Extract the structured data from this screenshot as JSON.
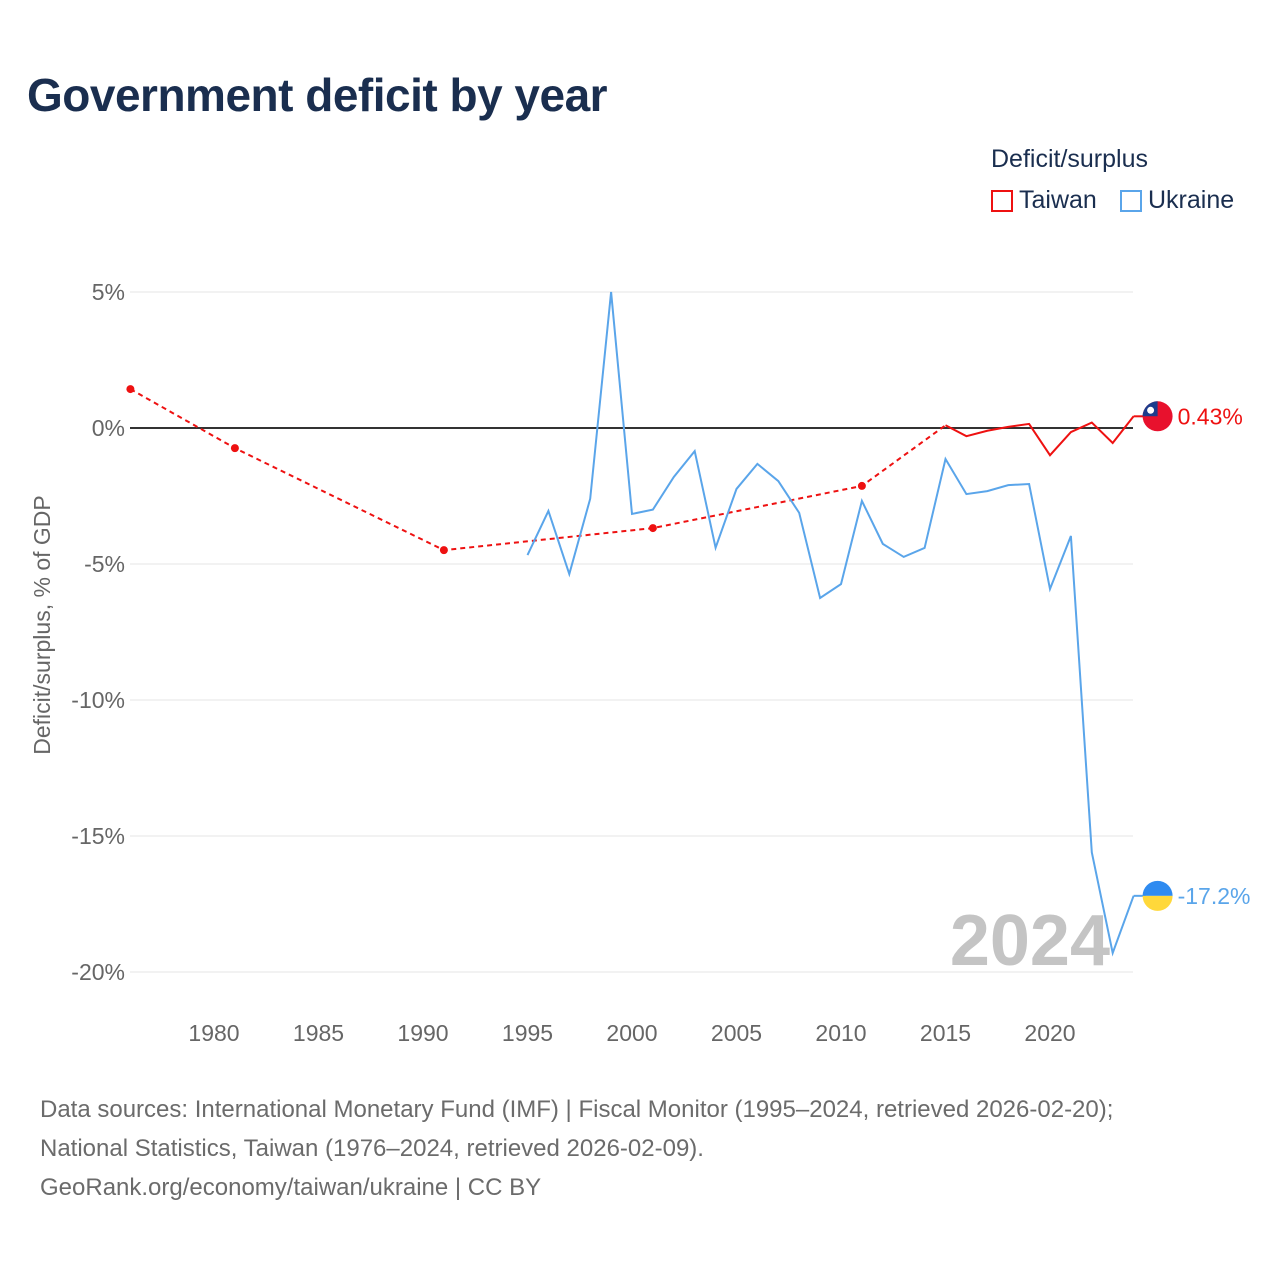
{
  "title": "Government deficit by year",
  "legend": {
    "title": "Deficit/surplus",
    "items": [
      {
        "label": "Taiwan",
        "color": "#ee1111"
      },
      {
        "label": "Ukraine",
        "color": "#5aa5ea"
      }
    ]
  },
  "chart_data": {
    "type": "line",
    "ylabel": "Deficit/surplus, % of GDP",
    "xlabel": "",
    "xlim": [
      1976,
      2024
    ],
    "ylim": [
      -20,
      5
    ],
    "x_ticks": [
      1980,
      1985,
      1990,
      1995,
      2000,
      2005,
      2010,
      2015,
      2020
    ],
    "y_ticks": [
      {
        "v": 5,
        "label": "5%"
      },
      {
        "v": 0,
        "label": "0%"
      },
      {
        "v": -5,
        "label": "-5%"
      },
      {
        "v": -10,
        "label": "-10%"
      },
      {
        "v": -15,
        "label": "-15%"
      },
      {
        "v": -20,
        "label": "-20%"
      }
    ],
    "year_watermark": "2024",
    "series": [
      {
        "name": "Taiwan",
        "color": "#ee1111",
        "end_label": "0.43%",
        "x": [
          1976,
          1981,
          1991,
          2001,
          2011,
          2015,
          2016,
          2017,
          2018,
          2019,
          2020,
          2021,
          2022,
          2023,
          2024
        ],
        "y": [
          1.43,
          -0.74,
          -4.49,
          -3.68,
          -2.13,
          0.1,
          -0.3,
          -0.1,
          0.04,
          0.15,
          -1.0,
          -0.15,
          0.2,
          -0.55,
          0.43
        ],
        "dashed_until": 2015
      },
      {
        "name": "Ukraine",
        "color": "#5aa5ea",
        "end_label": "-17.2%",
        "x": [
          1995,
          1996,
          1997,
          1998,
          1999,
          2000,
          2001,
          2002,
          2003,
          2004,
          2005,
          2006,
          2007,
          2008,
          2009,
          2010,
          2011,
          2012,
          2013,
          2014,
          2015,
          2016,
          2017,
          2018,
          2019,
          2020,
          2021,
          2022,
          2023,
          2024
        ],
        "y": [
          -4.67,
          -3.05,
          -5.37,
          -2.6,
          5.0,
          -3.16,
          -3.0,
          -1.8,
          -0.85,
          -4.4,
          -2.24,
          -1.32,
          -1.95,
          -3.12,
          -6.25,
          -5.74,
          -2.68,
          -4.26,
          -4.74,
          -4.41,
          -1.14,
          -2.43,
          -2.32,
          -2.1,
          -2.06,
          -5.92,
          -3.97,
          -15.6,
          -19.3,
          -17.2
        ]
      }
    ]
  },
  "sources": [
    "Data sources: International Monetary Fund (IMF) | Fiscal Monitor (1995–2024, retrieved 2026-02-20);",
    "National Statistics, Taiwan (1976–2024, retrieved 2026-02-09).",
    "GeoRank.org/economy/taiwan/ukraine | CC BY"
  ]
}
